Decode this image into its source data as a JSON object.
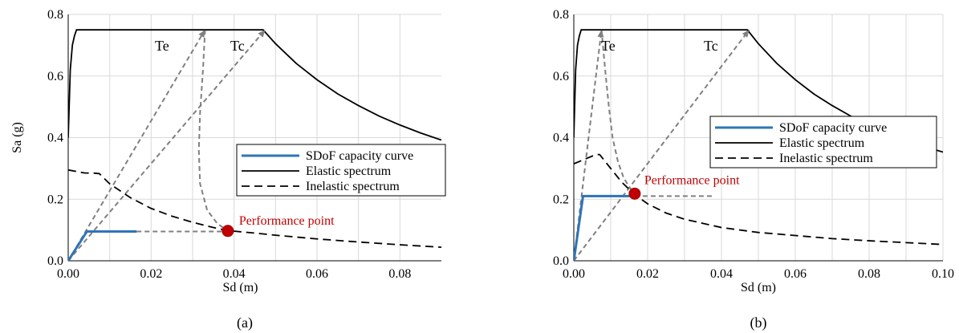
{
  "chart_data": [
    {
      "type": "line",
      "caption": "(a)",
      "xlabel": "Sd (m)",
      "ylabel": "Sa (g)",
      "xlim": [
        0,
        0.09
      ],
      "ylim": [
        0,
        0.8
      ],
      "xticks": [
        "0.00",
        "0.02",
        "0.04",
        "0.06",
        "0.08"
      ],
      "xtick_values": [
        0,
        0.02,
        0.04,
        0.06,
        0.08
      ],
      "yticks": [
        "0.0",
        "0.2",
        "0.4",
        "0.6",
        "0.8"
      ],
      "ytick_values": [
        0,
        0.2,
        0.4,
        0.6,
        0.8
      ],
      "grid": true,
      "legend_position": "middle-right",
      "legend": [
        "SDoF capacity curve",
        "Elastic spectrum",
        "Inelastic spectrum"
      ],
      "annotations": {
        "te": "Te",
        "tc": "Tc",
        "performance": "Performance point"
      },
      "series": [
        {
          "name": "SDoF capacity curve",
          "color": "#2e75b6",
          "style": "solid-thick",
          "x": [
            0,
            0.0045,
            0.0165
          ],
          "y": [
            0,
            0.095,
            0.095
          ]
        },
        {
          "name": "Elastic spectrum",
          "color": "#000000",
          "style": "solid",
          "x": [
            0,
            0.0005,
            0.001,
            0.0015,
            0.002,
            0.0025,
            0.01,
            0.02,
            0.03,
            0.04,
            0.046,
            0.047,
            0.05,
            0.055,
            0.06,
            0.065,
            0.07,
            0.075,
            0.08,
            0.085,
            0.09
          ],
          "y": [
            0.4,
            0.62,
            0.7,
            0.73,
            0.75,
            0.75,
            0.75,
            0.75,
            0.75,
            0.75,
            0.75,
            0.75,
            0.705,
            0.641,
            0.588,
            0.542,
            0.504,
            0.47,
            0.441,
            0.415,
            0.392
          ]
        },
        {
          "name": "Inelastic spectrum",
          "color": "#000000",
          "style": "dashed",
          "x": [
            0,
            0.002,
            0.004,
            0.006,
            0.0075,
            0.01,
            0.015,
            0.02,
            0.025,
            0.03,
            0.035,
            0.0385,
            0.045,
            0.05,
            0.06,
            0.07,
            0.08,
            0.09
          ],
          "y": [
            0.295,
            0.29,
            0.285,
            0.285,
            0.283,
            0.25,
            0.205,
            0.17,
            0.145,
            0.125,
            0.108,
            0.098,
            0.09,
            0.083,
            0.071,
            0.061,
            0.052,
            0.044
          ]
        },
        {
          "name": "",
          "color": "#808080",
          "style": "dashed-gray",
          "x": [
            0.0165,
            0.0385
          ],
          "y": [
            0.095,
            0.095
          ]
        },
        {
          "name": "",
          "color": "#808080",
          "style": "dashed-gray",
          "x": [
            0,
            0.033
          ],
          "y": [
            0,
            0.75
          ]
        },
        {
          "name": "",
          "color": "#808080",
          "style": "dashed-gray",
          "x": [
            0,
            0.0475
          ],
          "y": [
            0,
            0.75
          ]
        },
        {
          "name": "",
          "color": "#808080",
          "style": "dashed-gray",
          "x": [
            0.033,
            0.0325,
            0.0318,
            0.0315,
            0.0318,
            0.0335,
            0.036,
            0.0385
          ],
          "y": [
            0.75,
            0.62,
            0.48,
            0.36,
            0.25,
            0.165,
            0.12,
            0.098
          ]
        }
      ],
      "performance_point": {
        "x": 0.0385,
        "y": 0.097
      }
    },
    {
      "type": "line",
      "caption": "(b)",
      "xlabel": "Sd (m)",
      "ylabel": "",
      "xlim": [
        0,
        0.1
      ],
      "ylim": [
        0,
        0.8
      ],
      "xticks": [
        "0.00",
        "0.02",
        "0.04",
        "0.06",
        "0.08",
        "0.10"
      ],
      "xtick_values": [
        0,
        0.02,
        0.04,
        0.06,
        0.08,
        0.1
      ],
      "yticks": [
        "0.0",
        "0.2",
        "0.4",
        "0.6",
        "0.8"
      ],
      "ytick_values": [
        0,
        0.2,
        0.4,
        0.6,
        0.8
      ],
      "grid": true,
      "legend_position": "middle-right",
      "legend": [
        "SDoF capacity curve",
        "Elastic spectrum",
        "Inelastic spectrum"
      ],
      "annotations": {
        "te": "Te",
        "tc": "Tc",
        "performance": "Performance point"
      },
      "series": [
        {
          "name": "SDoF capacity curve",
          "color": "#2e75b6",
          "style": "solid-thick",
          "x": [
            0,
            0.0025,
            0.0165
          ],
          "y": [
            0,
            0.21,
            0.21
          ]
        },
        {
          "name": "Elastic spectrum",
          "color": "#000000",
          "style": "solid",
          "x": [
            0,
            0.0005,
            0.001,
            0.0015,
            0.002,
            0.0025,
            0.01,
            0.02,
            0.03,
            0.04,
            0.046,
            0.047,
            0.05,
            0.055,
            0.06,
            0.065,
            0.07,
            0.075,
            0.08,
            0.085,
            0.09,
            0.095,
            0.1
          ],
          "y": [
            0.4,
            0.62,
            0.7,
            0.73,
            0.75,
            0.75,
            0.75,
            0.75,
            0.75,
            0.75,
            0.75,
            0.75,
            0.705,
            0.641,
            0.588,
            0.542,
            0.504,
            0.47,
            0.441,
            0.415,
            0.392,
            0.371,
            0.353
          ]
        },
        {
          "name": "Inelastic spectrum",
          "color": "#000000",
          "style": "dashed",
          "x": [
            0,
            0.002,
            0.004,
            0.006,
            0.007,
            0.01,
            0.013,
            0.0165,
            0.02,
            0.025,
            0.03,
            0.04,
            0.05,
            0.06,
            0.07,
            0.08,
            0.09,
            0.1
          ],
          "y": [
            0.315,
            0.325,
            0.335,
            0.345,
            0.345,
            0.3,
            0.255,
            0.215,
            0.185,
            0.155,
            0.135,
            0.108,
            0.092,
            0.082,
            0.072,
            0.065,
            0.059,
            0.053
          ]
        },
        {
          "name": "",
          "color": "#808080",
          "style": "dashed-gray",
          "x": [
            0.0165,
            0.0375
          ],
          "y": [
            0.21,
            0.21
          ]
        },
        {
          "name": "",
          "color": "#808080",
          "style": "dashed-gray",
          "x": [
            0,
            0.0075
          ],
          "y": [
            0,
            0.75
          ]
        },
        {
          "name": "",
          "color": "#808080",
          "style": "dashed-gray",
          "x": [
            0,
            0.0475
          ],
          "y": [
            0,
            0.75
          ]
        },
        {
          "name": "",
          "color": "#808080",
          "style": "dashed-gray",
          "x": [
            0.0075,
            0.0085,
            0.0095,
            0.0105,
            0.012,
            0.0135,
            0.015,
            0.0165
          ],
          "y": [
            0.75,
            0.62,
            0.5,
            0.4,
            0.32,
            0.27,
            0.24,
            0.218
          ]
        }
      ],
      "performance_point": {
        "x": 0.0165,
        "y": 0.218
      }
    }
  ]
}
